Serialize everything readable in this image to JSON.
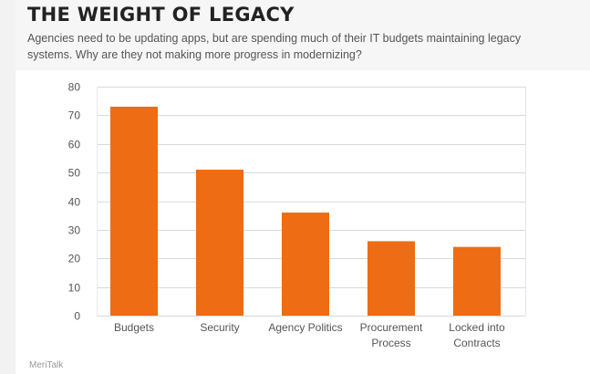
{
  "header": {
    "title": "THE WEIGHT OF LEGACY",
    "subtitle": "Agencies need to be updating apps, but are spending much of their IT budgets maintaining legacy systems. Why are they not making more progress in modernizing?"
  },
  "source": "MeriTalk",
  "colors": {
    "bar": "#ee6c13",
    "grid": "#d9d9d9",
    "tick": "#555555"
  },
  "chart_data": {
    "type": "bar",
    "title": "THE WEIGHT OF LEGACY",
    "categories": [
      "Budgets",
      "Security",
      "Agency Politics",
      "Procurement Process",
      "Locked into Contracts"
    ],
    "category_lines": [
      [
        "Budgets"
      ],
      [
        "Security"
      ],
      [
        "Agency Politics"
      ],
      [
        "Procurement",
        "Process"
      ],
      [
        "Locked into",
        "Contracts"
      ]
    ],
    "values": [
      73,
      51,
      36,
      26,
      24
    ],
    "xlabel": "",
    "ylabel": "",
    "ylim": [
      0,
      80
    ],
    "yticks": [
      0,
      10,
      20,
      30,
      40,
      50,
      60,
      70,
      80
    ],
    "grid": true,
    "legend": "none"
  }
}
